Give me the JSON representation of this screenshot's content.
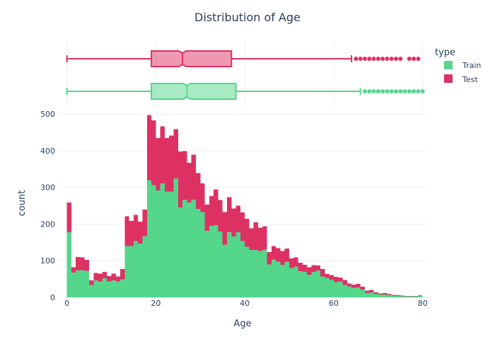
{
  "chart_data": {
    "type": "bar",
    "subtype": "stacked histogram with marginal box plots",
    "title": "Distribution of Age",
    "xlabel": "Age",
    "ylabel": "count",
    "xlim": [
      -2,
      81
    ],
    "ylim": [
      0,
      510
    ],
    "x_ticks": [
      0,
      20,
      40,
      60,
      80
    ],
    "y_ticks": [
      0,
      100,
      200,
      300,
      400,
      500
    ],
    "grid": true,
    "legend": {
      "title": "type",
      "position": "top-right"
    },
    "bin_width": 1,
    "bin_start": 0,
    "series": [
      {
        "name": "Train",
        "color": "#54d68b",
        "values": [
          178,
          68,
          73,
          74,
          72,
          34,
          46,
          43,
          52,
          43,
          46,
          43,
          49,
          140,
          140,
          154,
          147,
          167,
          320,
          306,
          292,
          311,
          289,
          289,
          325,
          245,
          267,
          259,
          267,
          241,
          233,
          182,
          195,
          197,
          180,
          144,
          178,
          166,
          178,
          154,
          138,
          129,
          129,
          127,
          130,
          90,
          103,
          98,
          89,
          98,
          80,
          84,
          71,
          70,
          62,
          70,
          73,
          57,
          53,
          48,
          42,
          43,
          34,
          30,
          26,
          27,
          21,
          13,
          14,
          10,
          8,
          8,
          7,
          5,
          4,
          3,
          3,
          3,
          3,
          5
        ]
      },
      {
        "name": "Test",
        "color": "#de3163",
        "values": [
          81,
          14,
          37,
          35,
          30,
          12,
          21,
          22,
          18,
          15,
          19,
          14,
          28,
          81,
          69,
          71,
          60,
          73,
          177,
          177,
          143,
          156,
          146,
          152,
          134,
          153,
          132,
          108,
          122,
          98,
          78,
          71,
          81,
          98,
          86,
          89,
          95,
          76,
          72,
          78,
          76,
          59,
          76,
          63,
          64,
          34,
          37,
          36,
          38,
          35,
          26,
          25,
          24,
          19,
          20,
          18,
          14,
          20,
          11,
          13,
          14,
          11,
          13,
          8,
          9,
          10,
          8,
          5,
          6,
          4,
          3,
          4,
          3,
          2,
          2,
          2,
          1,
          1,
          1,
          1
        ]
      }
    ],
    "box_plots": [
      {
        "name": "Test",
        "color": "#de3163",
        "min": 0,
        "q1": 19,
        "median": 26,
        "q3": 37,
        "upper_fence": 64,
        "outliers": [
          65,
          66,
          67,
          68,
          69,
          70,
          71,
          72,
          73,
          74,
          75,
          77,
          78,
          79
        ]
      },
      {
        "name": "Train",
        "color": "#54d68b",
        "min": 0,
        "q1": 19,
        "median": 27,
        "q3": 38,
        "upper_fence": 66,
        "outliers": [
          67,
          68,
          69,
          70,
          71,
          72,
          73,
          74,
          75,
          76,
          77,
          78,
          79,
          80
        ]
      }
    ]
  }
}
